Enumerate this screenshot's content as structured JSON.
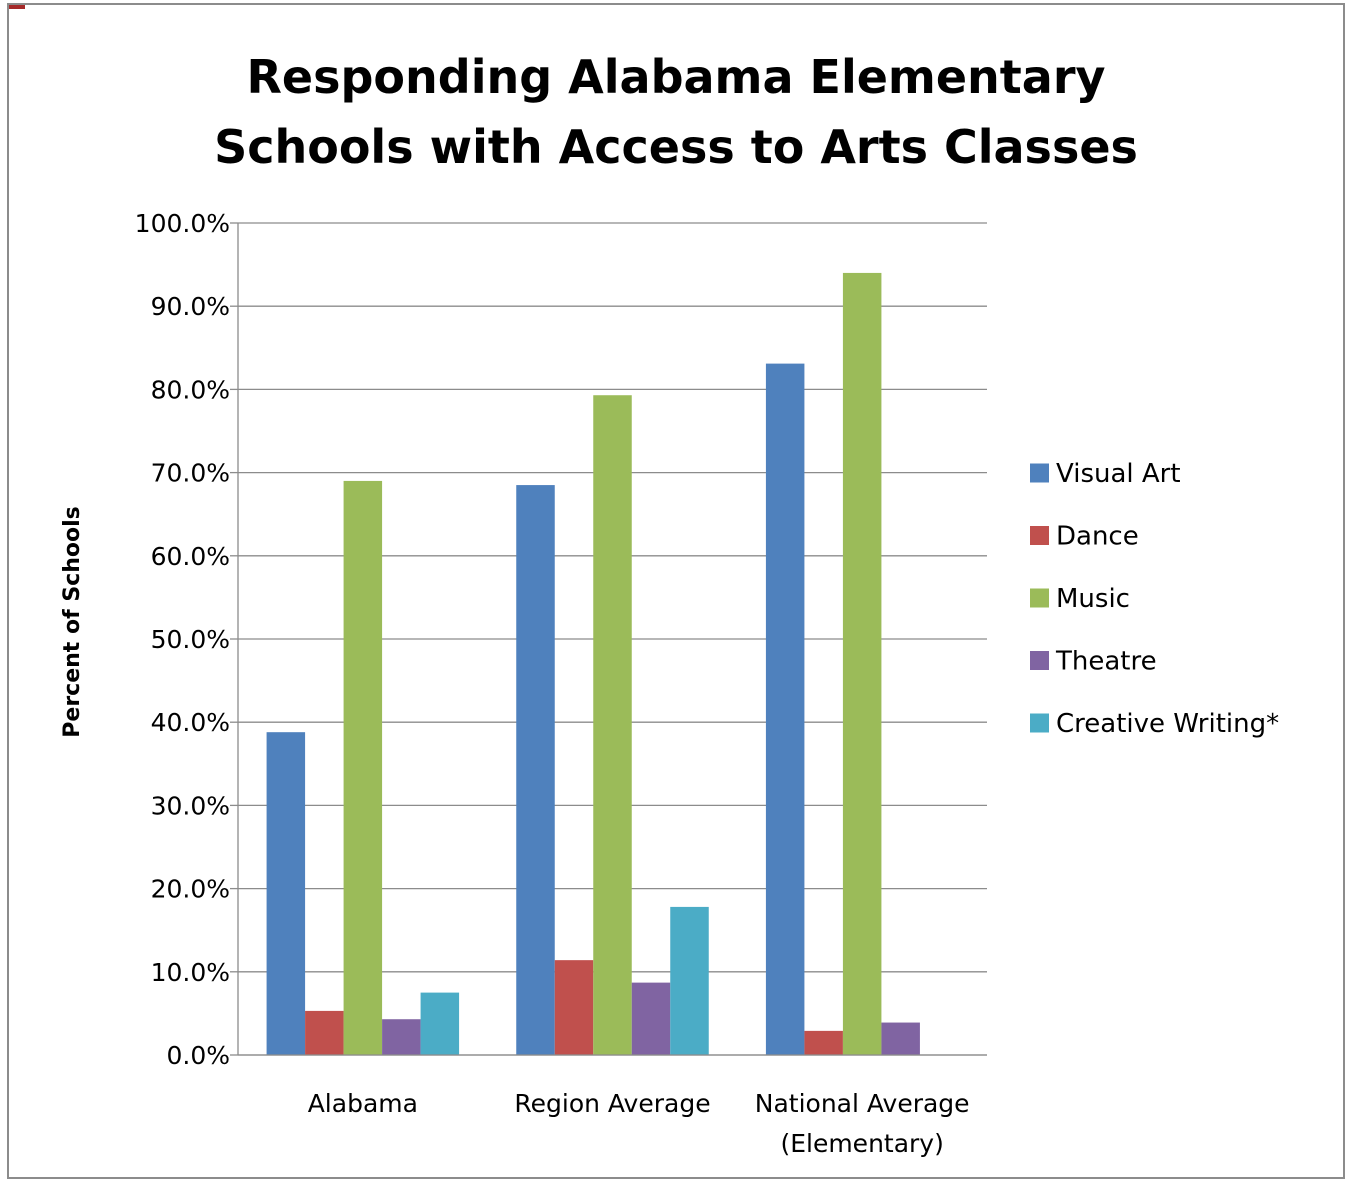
{
  "chart_data": {
    "type": "bar",
    "title_lines": [
      "Responding Alabama Elementary",
      "Schools with Access to Arts Classes"
    ],
    "ylabel": "Percent of Schools",
    "xlabel": "",
    "ylim": [
      0,
      100
    ],
    "y_ticks": [
      "0.0%",
      "10.0%",
      "20.0%",
      "30.0%",
      "40.0%",
      "50.0%",
      "60.0%",
      "70.0%",
      "80.0%",
      "90.0%",
      "100.0%"
    ],
    "grid": true,
    "legend_position": "right",
    "categories": [
      [
        "Alabama"
      ],
      [
        "Region Average"
      ],
      [
        "National Average",
        "(Elementary)"
      ]
    ],
    "series": [
      {
        "name": "Visual Art",
        "color": "#4f81bd",
        "values": [
          38.8,
          68.5,
          83.1
        ]
      },
      {
        "name": "Dance",
        "color": "#c0504d",
        "values": [
          5.3,
          11.4,
          2.9
        ]
      },
      {
        "name": "Music",
        "color": "#9bbb59",
        "values": [
          69.0,
          79.3,
          94.0
        ]
      },
      {
        "name": "Theatre",
        "color": "#8064a2",
        "values": [
          4.3,
          8.7,
          3.9
        ]
      },
      {
        "name": "Creative Writing*",
        "color": "#4bacc6",
        "values": [
          7.5,
          17.8,
          null
        ]
      }
    ]
  }
}
